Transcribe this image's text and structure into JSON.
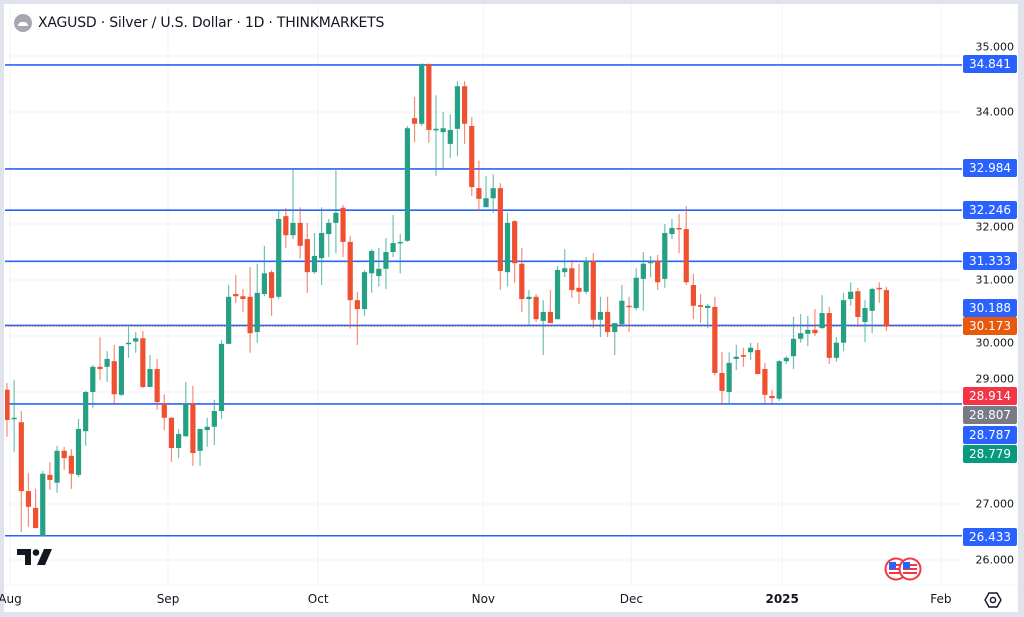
{
  "header": {
    "symbol_title": "XAGUSD · Silver / U.S. Dollar · 1D · THINKMARKETS"
  },
  "colors": {
    "up": "#26a085",
    "down": "#ef5030",
    "level_line": "#2962ff",
    "last_price": "#e8590c",
    "label_red": "#f23645",
    "label_gray": "#787b86",
    "label_green": "#089981",
    "grid": "#f0f3fa"
  },
  "price_labels": [
    {
      "value": "34.841",
      "color": "#2962ff"
    },
    {
      "value": "32.984",
      "color": "#2962ff"
    },
    {
      "value": "32.246",
      "color": "#2962ff"
    },
    {
      "value": "31.333",
      "color": "#2962ff"
    },
    {
      "value": "30.188",
      "color": "#2962ff"
    },
    {
      "value": "30.173",
      "color": "#e8590c"
    },
    {
      "value": "28.914",
      "color": "#f23645"
    },
    {
      "value": "28.807",
      "color": "#787b86"
    },
    {
      "value": "28.787",
      "color": "#2962ff"
    },
    {
      "value": "28.779",
      "color": "#089981"
    },
    {
      "value": "26.433",
      "color": "#2962ff"
    }
  ],
  "chart_data": {
    "type": "candlestick",
    "title": "XAGUSD · Silver / U.S. Dollar · 1D · THINKMARKETS",
    "ylim": [
      25.6,
      35.2
    ],
    "y_ticks": [
      "35.000",
      "34.000",
      "32.000",
      "31.000",
      "30.000",
      "29.000",
      "27.000",
      "26.000"
    ],
    "x_ticks": [
      {
        "label": "Aug",
        "index": 0,
        "bold": false
      },
      {
        "label": "Sep",
        "index": 22.1,
        "bold": false
      },
      {
        "label": "Oct",
        "index": 43.1,
        "bold": false
      },
      {
        "label": "Nov",
        "index": 66.2,
        "bold": false
      },
      {
        "label": "Dec",
        "index": 86.9,
        "bold": false
      },
      {
        "label": "2025",
        "index": 108.0,
        "bold": true
      },
      {
        "label": "Feb",
        "index": 130.2,
        "bold": false
      }
    ],
    "horizontal_levels": [
      {
        "price": 34.841,
        "style": "solid"
      },
      {
        "price": 32.984,
        "style": "solid"
      },
      {
        "price": 32.246,
        "style": "solid"
      },
      {
        "price": 31.333,
        "style": "solid"
      },
      {
        "price": 30.188,
        "style": "solid"
      },
      {
        "price": 30.173,
        "style": "dotted"
      },
      {
        "price": 28.787,
        "style": "solid"
      },
      {
        "price": 26.433,
        "style": "solid"
      }
    ],
    "last_close": 30.173,
    "ohlc": [
      [
        29.04,
        29.16,
        28.2,
        28.5
      ],
      [
        28.52,
        29.21,
        27.93,
        28.54
      ],
      [
        28.46,
        28.66,
        26.5,
        27.23
      ],
      [
        27.23,
        27.55,
        26.59,
        26.95
      ],
      [
        26.93,
        27.27,
        26.57,
        26.57
      ],
      [
        26.43,
        27.59,
        26.43,
        27.54
      ],
      [
        27.52,
        27.75,
        27.25,
        27.43
      ],
      [
        27.38,
        28.04,
        27.2,
        27.95
      ],
      [
        27.95,
        28.02,
        27.61,
        27.82
      ],
      [
        27.86,
        27.98,
        27.27,
        27.54
      ],
      [
        27.52,
        28.52,
        27.48,
        28.34
      ],
      [
        28.3,
        29.02,
        28.04,
        29.0
      ],
      [
        29.0,
        29.48,
        28.72,
        29.45
      ],
      [
        29.45,
        29.98,
        29.21,
        29.41
      ],
      [
        29.45,
        29.73,
        29.18,
        29.59
      ],
      [
        29.55,
        29.84,
        28.79,
        28.96
      ],
      [
        28.95,
        29.82,
        28.93,
        29.82
      ],
      [
        29.86,
        30.16,
        29.61,
        29.88
      ],
      [
        29.9,
        30.07,
        29.7,
        29.96
      ],
      [
        29.96,
        30.09,
        29.07,
        29.09
      ],
      [
        29.09,
        29.66,
        29.09,
        29.41
      ],
      [
        29.41,
        29.59,
        28.68,
        28.82
      ],
      [
        28.79,
        28.96,
        28.32,
        28.54
      ],
      [
        28.54,
        28.55,
        27.75,
        28.0
      ],
      [
        28.0,
        28.34,
        27.82,
        28.25
      ],
      [
        28.21,
        29.18,
        28.2,
        28.8
      ],
      [
        28.8,
        29.11,
        27.68,
        27.91
      ],
      [
        27.95,
        28.34,
        27.68,
        28.34
      ],
      [
        28.32,
        28.54,
        28.02,
        28.38
      ],
      [
        28.38,
        28.86,
        28.05,
        28.66
      ],
      [
        28.66,
        29.93,
        28.52,
        29.86
      ],
      [
        29.86,
        30.91,
        29.86,
        30.7
      ],
      [
        30.75,
        31.09,
        30.59,
        30.71
      ],
      [
        30.71,
        30.84,
        30.43,
        30.66
      ],
      [
        30.7,
        31.23,
        29.7,
        30.05
      ],
      [
        30.07,
        31.29,
        29.88,
        30.77
      ],
      [
        30.75,
        31.61,
        30.71,
        31.12
      ],
      [
        31.14,
        31.18,
        30.36,
        30.68
      ],
      [
        30.7,
        32.25,
        30.66,
        32.09
      ],
      [
        32.14,
        32.29,
        31.57,
        31.8
      ],
      [
        31.8,
        32.98,
        31.73,
        32.02
      ],
      [
        32.02,
        32.3,
        31.38,
        31.61
      ],
      [
        31.73,
        32.02,
        30.77,
        31.14
      ],
      [
        31.14,
        31.84,
        31.11,
        31.43
      ],
      [
        31.39,
        32.3,
        30.91,
        31.84
      ],
      [
        31.82,
        32.09,
        31.41,
        32.02
      ],
      [
        32.02,
        32.96,
        31.48,
        32.2
      ],
      [
        32.29,
        32.34,
        31.41,
        31.68
      ],
      [
        31.68,
        31.79,
        30.13,
        30.64
      ],
      [
        30.64,
        30.79,
        29.84,
        30.48
      ],
      [
        30.48,
        31.18,
        30.36,
        31.14
      ],
      [
        31.12,
        31.55,
        30.77,
        31.52
      ],
      [
        31.07,
        31.57,
        30.88,
        31.2
      ],
      [
        31.2,
        31.75,
        30.84,
        31.5
      ],
      [
        31.5,
        32.16,
        31.41,
        31.66
      ],
      [
        31.66,
        31.82,
        31.12,
        31.68
      ],
      [
        31.7,
        33.75,
        31.68,
        33.71
      ],
      [
        33.89,
        34.27,
        33.46,
        33.79
      ],
      [
        33.79,
        34.86,
        33.75,
        34.86
      ],
      [
        34.86,
        34.86,
        33.45,
        33.68
      ],
      [
        33.7,
        34.3,
        32.86,
        33.7
      ],
      [
        33.64,
        34.0,
        33.0,
        33.71
      ],
      [
        33.43,
        33.96,
        33.18,
        33.68
      ],
      [
        33.7,
        34.55,
        33.21,
        34.46
      ],
      [
        34.46,
        34.55,
        33.43,
        33.79
      ],
      [
        33.75,
        33.91,
        32.5,
        32.66
      ],
      [
        32.64,
        33.13,
        32.23,
        32.45
      ],
      [
        32.3,
        32.86,
        32.3,
        32.46
      ],
      [
        32.46,
        32.89,
        32.2,
        32.64
      ],
      [
        32.64,
        32.73,
        30.82,
        31.16
      ],
      [
        31.14,
        32.2,
        30.88,
        32.02
      ],
      [
        32.05,
        32.07,
        30.95,
        31.3
      ],
      [
        31.29,
        31.57,
        30.43,
        30.66
      ],
      [
        30.66,
        30.82,
        30.2,
        30.7
      ],
      [
        30.7,
        30.75,
        30.25,
        30.3
      ],
      [
        30.27,
        30.64,
        29.66,
        30.43
      ],
      [
        30.43,
        30.82,
        30.23,
        30.23
      ],
      [
        30.3,
        31.25,
        30.3,
        31.18
      ],
      [
        31.14,
        31.55,
        31.05,
        31.21
      ],
      [
        31.21,
        31.36,
        30.68,
        30.82
      ],
      [
        30.86,
        31.29,
        30.57,
        30.79
      ],
      [
        30.79,
        31.41,
        30.75,
        31.34
      ],
      [
        31.34,
        31.48,
        30.14,
        30.29
      ],
      [
        30.29,
        30.7,
        29.98,
        30.43
      ],
      [
        30.43,
        30.7,
        29.98,
        30.07
      ],
      [
        30.07,
        30.16,
        29.66,
        30.23
      ],
      [
        30.21,
        30.91,
        30.2,
        30.63
      ],
      [
        30.54,
        30.7,
        30.07,
        30.52
      ],
      [
        30.5,
        31.21,
        30.46,
        31.04
      ],
      [
        31.02,
        31.5,
        30.45,
        31.29
      ],
      [
        31.3,
        31.43,
        31.05,
        31.34
      ],
      [
        31.34,
        31.45,
        30.82,
        30.96
      ],
      [
        31.02,
        32.0,
        30.86,
        31.84
      ],
      [
        31.82,
        32.09,
        31.73,
        31.93
      ],
      [
        31.93,
        32.18,
        31.48,
        31.91
      ],
      [
        31.91,
        32.32,
        30.91,
        30.96
      ],
      [
        30.91,
        31.11,
        30.3,
        30.54
      ],
      [
        30.55,
        30.75,
        30.23,
        30.52
      ],
      [
        30.5,
        30.57,
        30.14,
        30.54
      ],
      [
        30.52,
        30.7,
        29.3,
        29.34
      ],
      [
        29.34,
        29.71,
        28.77,
        29.02
      ],
      [
        29.0,
        29.71,
        28.8,
        29.52
      ],
      [
        29.59,
        29.84,
        29.39,
        29.63
      ],
      [
        29.66,
        29.79,
        29.45,
        29.63
      ],
      [
        29.71,
        29.88,
        29.57,
        29.79
      ],
      [
        29.75,
        29.88,
        29.32,
        29.32
      ],
      [
        29.41,
        29.52,
        28.8,
        28.95
      ],
      [
        28.93,
        29.04,
        28.8,
        28.89
      ],
      [
        28.88,
        29.57,
        28.84,
        29.55
      ],
      [
        29.55,
        29.64,
        29.5,
        29.61
      ],
      [
        29.64,
        30.34,
        29.41,
        29.95
      ],
      [
        29.95,
        30.39,
        29.88,
        30.05
      ],
      [
        30.04,
        30.36,
        29.82,
        30.11
      ],
      [
        30.11,
        30.48,
        30.0,
        30.05
      ],
      [
        30.14,
        30.73,
        30.13,
        30.41
      ],
      [
        30.41,
        30.52,
        29.5,
        29.61
      ],
      [
        29.61,
        29.98,
        29.54,
        29.88
      ],
      [
        29.88,
        30.77,
        29.73,
        30.64
      ],
      [
        30.66,
        30.96,
        30.54,
        30.79
      ],
      [
        30.8,
        30.86,
        30.16,
        30.34
      ],
      [
        30.25,
        30.64,
        29.89,
        30.5
      ],
      [
        30.45,
        30.86,
        30.05,
        30.84
      ],
      [
        30.86,
        30.96,
        30.59,
        30.84
      ],
      [
        30.82,
        30.88,
        30.09,
        30.17
      ]
    ]
  }
}
